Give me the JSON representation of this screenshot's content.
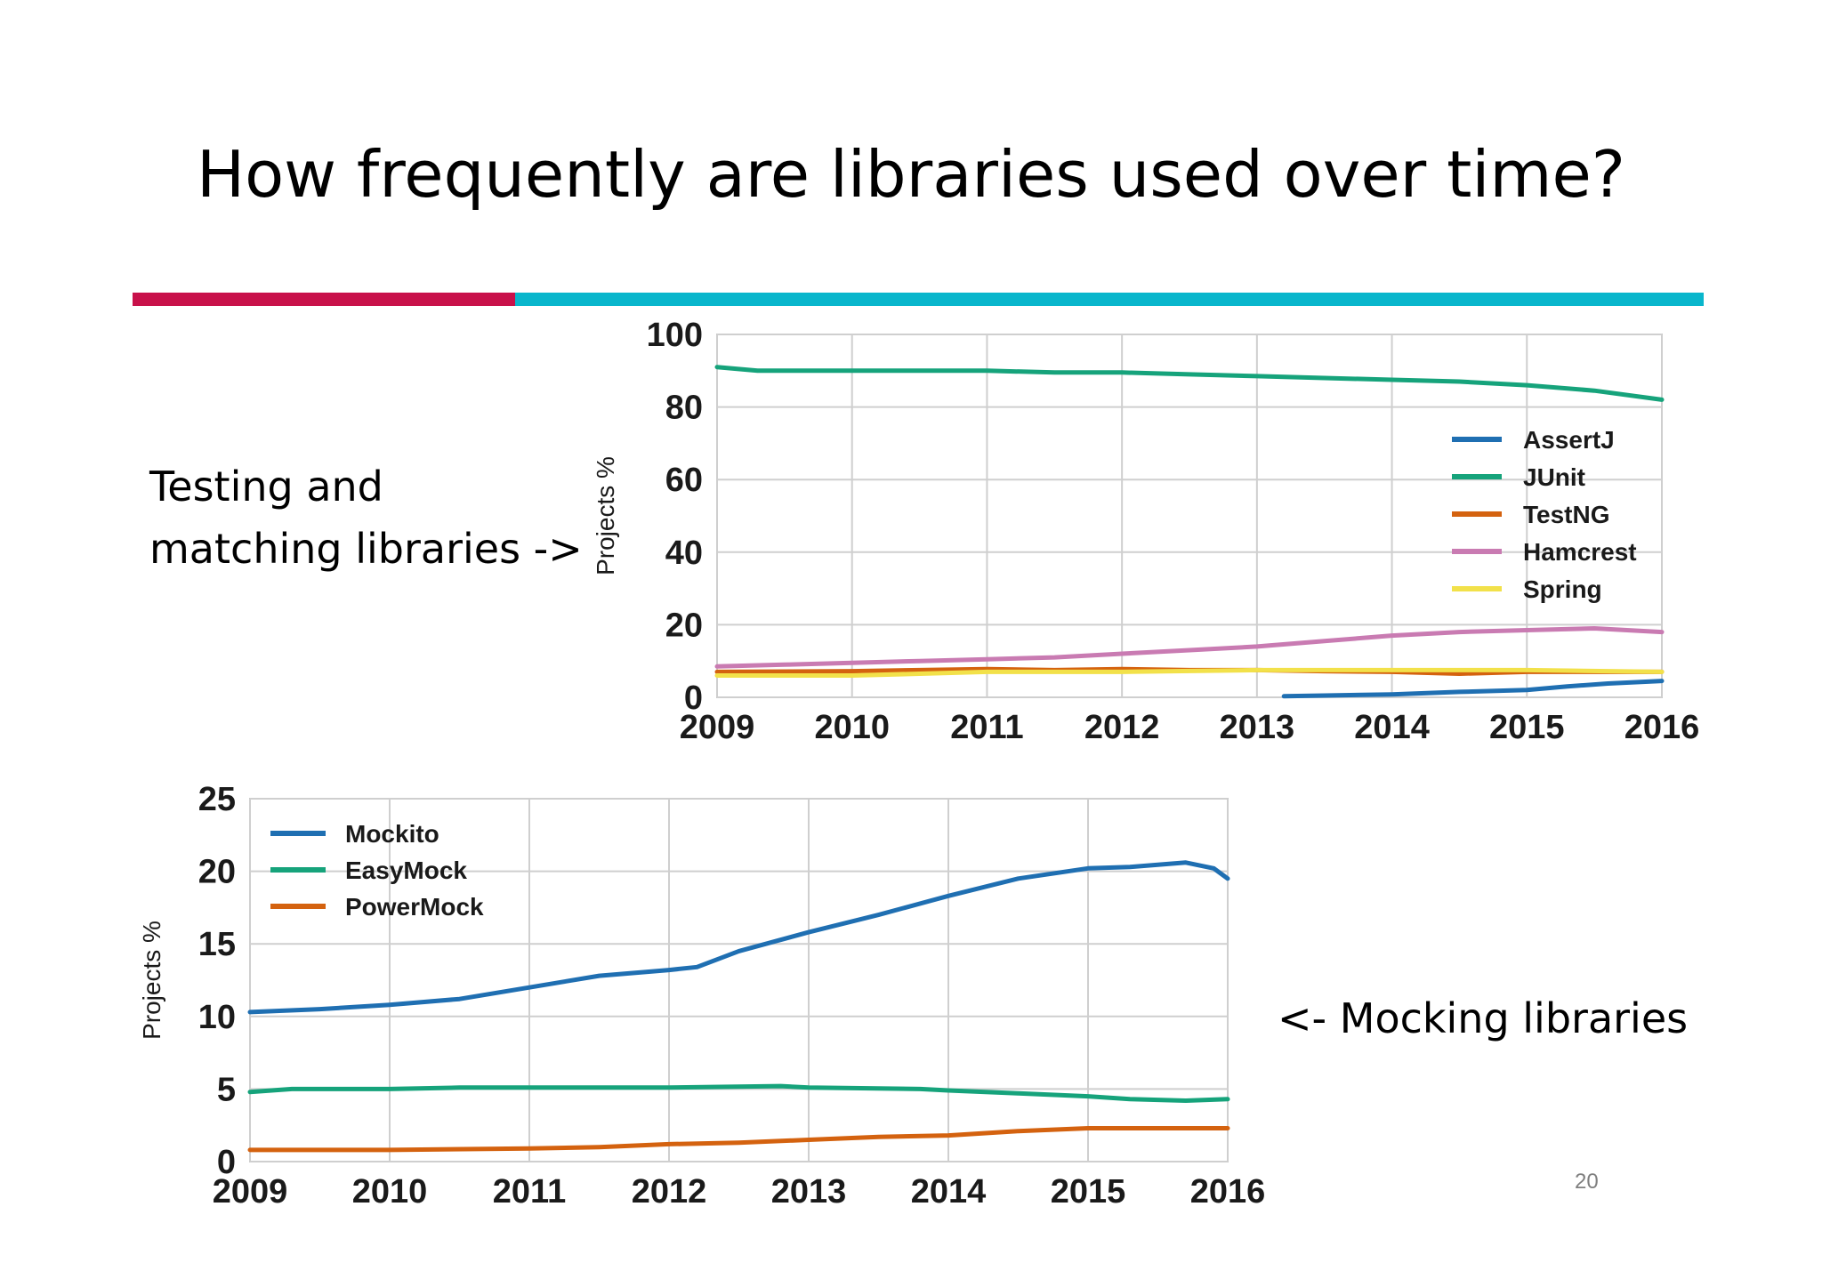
{
  "slide": {
    "title": "How frequently are libraries used over time?",
    "page_number": "20",
    "divider_colors": [
      "#c8114a",
      "#09b6cc"
    ],
    "side_labels": {
      "testing": "Testing and\nmatching libraries ->",
      "mocking": "<- Mocking libraries"
    }
  },
  "chart_data": [
    {
      "type": "line",
      "ylabel": "Projects %",
      "xlabel": "",
      "xlim": [
        2009,
        2016
      ],
      "ylim": [
        0,
        100
      ],
      "x_ticks": [
        2009,
        2010,
        2011,
        2012,
        2013,
        2014,
        2015,
        2016
      ],
      "y_ticks": [
        0,
        20,
        40,
        60,
        80,
        100
      ],
      "grid": true,
      "legend_position": "right",
      "series": [
        {
          "name": "AssertJ",
          "color": "#1f6fb2",
          "x": [
            2013.2,
            2013.5,
            2014.0,
            2014.5,
            2015.0,
            2015.3,
            2015.6,
            2016.0
          ],
          "y": [
            0.3,
            0.5,
            0.8,
            1.5,
            2.0,
            3.0,
            3.8,
            4.5
          ]
        },
        {
          "name": "JUnit",
          "color": "#16a37b",
          "x": [
            2009.0,
            2009.3,
            2010.0,
            2010.5,
            2011.0,
            2011.5,
            2012.0,
            2012.5,
            2013.0,
            2013.5,
            2014.0,
            2014.5,
            2015.0,
            2015.5,
            2016.0
          ],
          "y": [
            91,
            90,
            90,
            90,
            90,
            89.5,
            89.5,
            89,
            88.5,
            88,
            87.5,
            87,
            86,
            84.5,
            82
          ]
        },
        {
          "name": "TestNG",
          "color": "#d4620f",
          "x": [
            2009.0,
            2010.0,
            2010.5,
            2011.0,
            2011.5,
            2012.0,
            2012.5,
            2013.0,
            2013.5,
            2014.0,
            2014.5,
            2015.0,
            2015.5,
            2016.0
          ],
          "y": [
            7,
            7.2,
            7.5,
            7.8,
            7.5,
            7.8,
            7.5,
            7.5,
            7.2,
            7.0,
            6.5,
            7.0,
            7.0,
            7.0
          ]
        },
        {
          "name": "Hamcrest",
          "color": "#c97bb2",
          "x": [
            2009.0,
            2009.5,
            2010.0,
            2010.5,
            2011.0,
            2011.5,
            2012.0,
            2012.5,
            2013.0,
            2013.5,
            2014.0,
            2014.5,
            2015.0,
            2015.5,
            2016.0
          ],
          "y": [
            8.5,
            9.0,
            9.5,
            10.0,
            10.5,
            11.0,
            12.0,
            13.0,
            14.0,
            15.5,
            17.0,
            18.0,
            18.5,
            19.0,
            18.0
          ]
        },
        {
          "name": "Spring",
          "color": "#f2e14a",
          "x": [
            2009.0,
            2010.0,
            2010.5,
            2011.0,
            2012.0,
            2013.0,
            2014.0,
            2015.0,
            2016.0
          ],
          "y": [
            6.0,
            6.0,
            6.5,
            7.0,
            7.0,
            7.5,
            7.5,
            7.5,
            7.0
          ]
        }
      ]
    },
    {
      "type": "line",
      "ylabel": "Projects %",
      "xlabel": "",
      "xlim": [
        2009,
        2016
      ],
      "ylim": [
        0,
        25
      ],
      "x_ticks": [
        2009,
        2010,
        2011,
        2012,
        2013,
        2014,
        2015,
        2016
      ],
      "y_ticks": [
        0,
        5,
        10,
        15,
        20,
        25
      ],
      "grid": true,
      "legend_position": "top-left",
      "series": [
        {
          "name": "Mockito",
          "color": "#1f6fb2",
          "x": [
            2009.0,
            2009.5,
            2010.0,
            2010.5,
            2011.0,
            2011.5,
            2012.0,
            2012.2,
            2012.5,
            2013.0,
            2013.5,
            2014.0,
            2014.5,
            2015.0,
            2015.3,
            2015.7,
            2015.9,
            2016.0
          ],
          "y": [
            10.3,
            10.5,
            10.8,
            11.2,
            12.0,
            12.8,
            13.2,
            13.4,
            14.5,
            15.8,
            17.0,
            18.3,
            19.5,
            20.2,
            20.3,
            20.6,
            20.2,
            19.5
          ]
        },
        {
          "name": "EasyMock",
          "color": "#16a37b",
          "x": [
            2009.0,
            2009.3,
            2010.0,
            2010.5,
            2011.0,
            2012.0,
            2012.8,
            2013.0,
            2013.8,
            2014.0,
            2014.5,
            2015.0,
            2015.3,
            2015.7,
            2016.0
          ],
          "y": [
            4.8,
            5.0,
            5.0,
            5.1,
            5.1,
            5.1,
            5.2,
            5.1,
            5.0,
            4.9,
            4.7,
            4.5,
            4.3,
            4.2,
            4.3
          ]
        },
        {
          "name": "PowerMock",
          "color": "#d4620f",
          "x": [
            2009.0,
            2010.0,
            2011.0,
            2011.5,
            2012.0,
            2012.5,
            2013.0,
            2013.5,
            2014.0,
            2014.5,
            2015.0,
            2015.5,
            2016.0
          ],
          "y": [
            0.8,
            0.8,
            0.9,
            1.0,
            1.2,
            1.3,
            1.5,
            1.7,
            1.8,
            2.1,
            2.3,
            2.3,
            2.3
          ]
        }
      ]
    }
  ]
}
